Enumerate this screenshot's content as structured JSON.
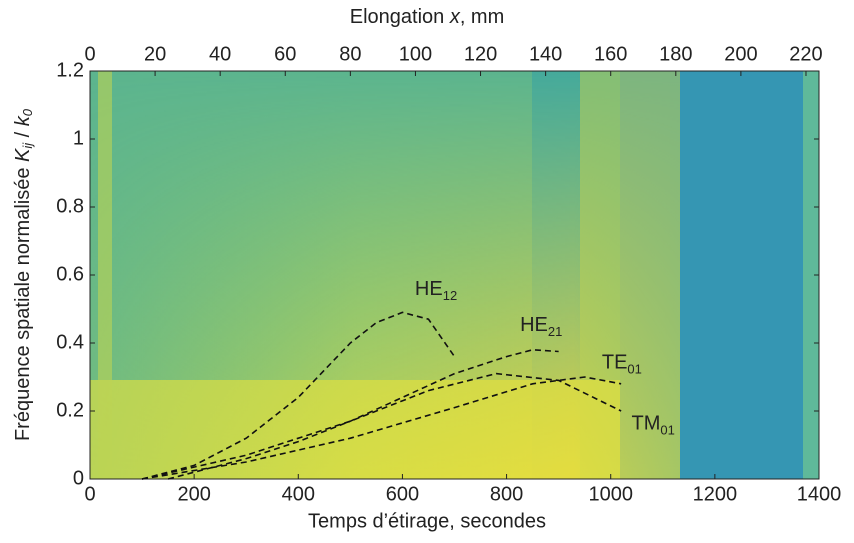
{
  "chart_data": {
    "type": "line",
    "xlabel": "Temps d’étirage, secondes",
    "x2label_parts": [
      "Elongation ",
      "x",
      ", mm"
    ],
    "ylabel_parts": [
      "Fréquence spatiale normalisée ",
      "K",
      "ij",
      " / ",
      "k",
      "0"
    ],
    "xlim": [
      0,
      1400
    ],
    "xticks": [
      0,
      200,
      400,
      600,
      800,
      1000,
      1200,
      1400
    ],
    "x2lim": [
      0,
      224
    ],
    "x2ticks": [
      0,
      20,
      40,
      60,
      80,
      100,
      120,
      140,
      160,
      180,
      200,
      220
    ],
    "ylim": [
      0,
      1.2
    ],
    "yticks": [
      0,
      0.2,
      0.4,
      0.6,
      0.8,
      1,
      1.2
    ],
    "series": [
      {
        "name": "HE",
        "sub": "12",
        "color": "#111",
        "x": [
          100,
          200,
          300,
          400,
          500,
          550,
          600,
          650,
          700
        ],
        "values": [
          0,
          0.04,
          0.12,
          0.24,
          0.4,
          0.46,
          0.49,
          0.47,
          0.36
        ],
        "label_at": [
          624,
          0.556
        ]
      },
      {
        "name": "HE",
        "sub": "21",
        "color": "#111",
        "x": [
          150,
          300,
          400,
          500,
          600,
          700,
          800,
          850,
          900
        ],
        "values": [
          0,
          0.06,
          0.11,
          0.17,
          0.24,
          0.31,
          0.36,
          0.38,
          0.375
        ],
        "label_at": [
          826,
          0.45
        ]
      },
      {
        "name": "TE",
        "sub": "01",
        "color": "#111",
        "x": [
          100,
          300,
          500,
          700,
          850,
          950,
          1020
        ],
        "values": [
          0,
          0.05,
          0.12,
          0.21,
          0.28,
          0.3,
          0.28
        ],
        "label_at": [
          983,
          0.34
        ]
      },
      {
        "name": "TM",
        "sub": "01",
        "color": "#111",
        "x": [
          100,
          300,
          500,
          650,
          780,
          900,
          1020
        ],
        "values": [
          0,
          0.07,
          0.17,
          0.26,
          0.31,
          0.29,
          0.2
        ],
        "label_at": [
          1040,
          0.16
        ]
      }
    ]
  }
}
